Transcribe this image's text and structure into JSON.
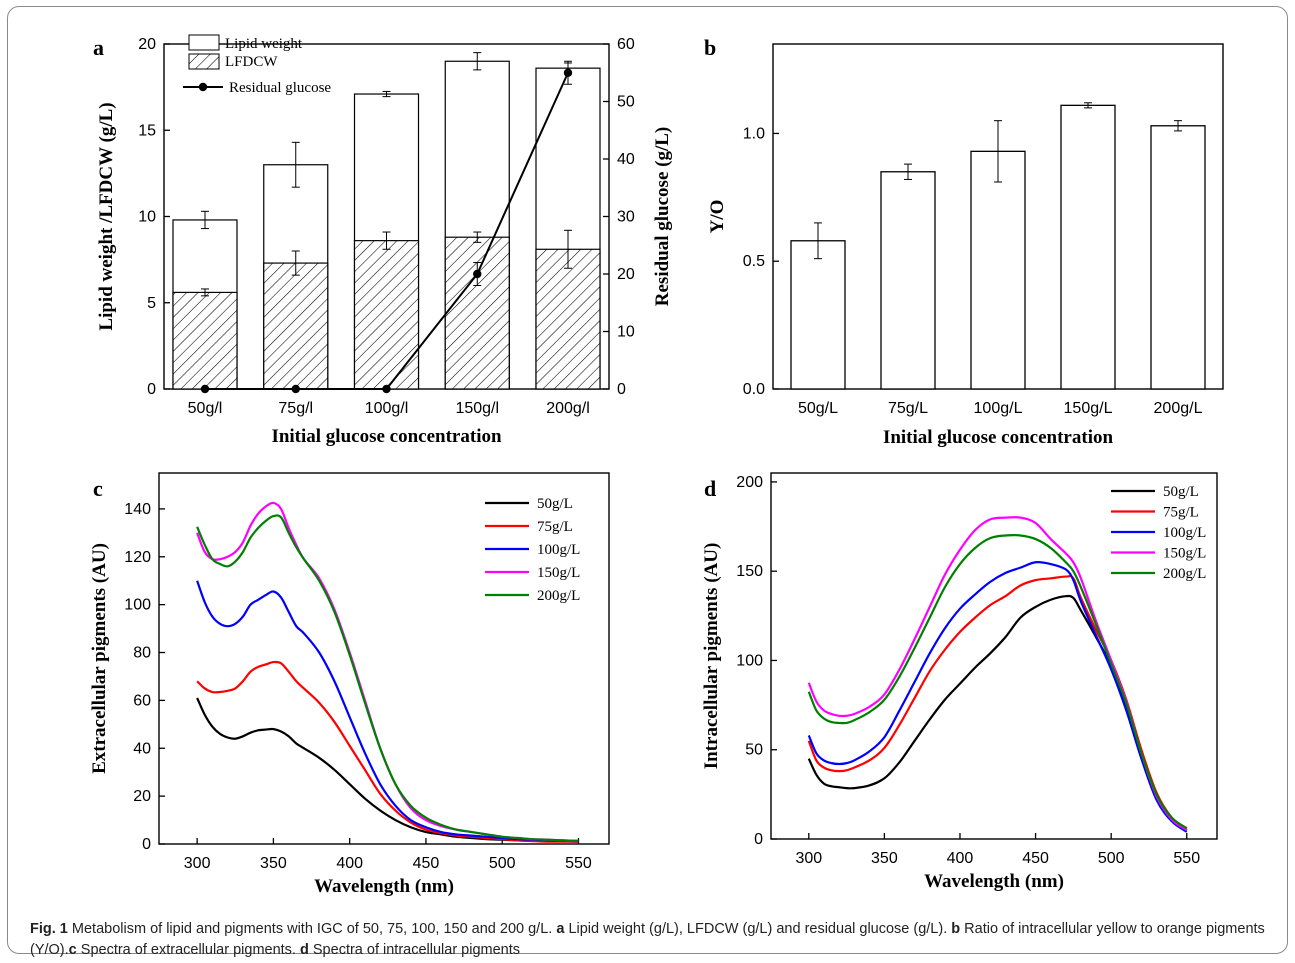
{
  "chart_data": [
    {
      "panel": "a",
      "type": "bar",
      "categories": [
        "50g/l",
        "75g/l",
        "100g/l",
        "150g/l",
        "200g/l"
      ],
      "xlabel": "Initial glucose concentration",
      "ylabel": "Lipid weight /LFDCW (g/L)",
      "y2label": "Residual glucose (g/L)",
      "ylim": [
        0,
        20
      ],
      "y2lim": [
        0,
        60
      ],
      "yticks": [
        0,
        5,
        10,
        15,
        20
      ],
      "y2ticks": [
        0,
        10,
        20,
        30,
        40,
        50,
        60
      ],
      "series": [
        {
          "name": "Lipid weight",
          "values": [
            9.8,
            13.0,
            17.1,
            19.0,
            18.6
          ],
          "errors": [
            0.5,
            1.3,
            0.15,
            0.5,
            0.3
          ]
        },
        {
          "name": "LFDCW",
          "values": [
            5.6,
            7.3,
            8.6,
            8.8,
            8.1
          ],
          "errors": [
            0.2,
            0.7,
            0.5,
            0.3,
            1.1
          ]
        },
        {
          "name": "Residual glucose",
          "values": [
            0,
            0,
            0,
            20,
            55
          ],
          "errors": [
            0,
            0,
            0,
            2,
            2
          ]
        }
      ],
      "legend_position": "top-left"
    },
    {
      "panel": "b",
      "type": "bar",
      "categories": [
        "50g/L",
        "75g/L",
        "100g/L",
        "150g/L",
        "200g/L"
      ],
      "xlabel": "Initial glucose concentration",
      "ylabel": "Y/O",
      "ylim": [
        0,
        1.35
      ],
      "yticks": [
        "0.0",
        "0.5",
        "1.0"
      ],
      "values": [
        0.58,
        0.85,
        0.93,
        1.11,
        1.03
      ],
      "errors": [
        0.07,
        0.03,
        0.12,
        0.01,
        0.02
      ]
    },
    {
      "panel": "c",
      "type": "line",
      "xlabel": "Wavelength (nm)",
      "ylabel": "Extracellular pigments (AU)",
      "xlim": [
        275,
        570
      ],
      "ylim": [
        0,
        155
      ],
      "xticks": [
        300,
        350,
        400,
        450,
        500,
        550
      ],
      "yticks": [
        0,
        20,
        40,
        60,
        80,
        100,
        120,
        140
      ],
      "legend_position": "top-right",
      "x": [
        300,
        305,
        310,
        315,
        320,
        325,
        330,
        335,
        340,
        345,
        350,
        355,
        360,
        365,
        370,
        380,
        390,
        400,
        410,
        420,
        430,
        440,
        450,
        460,
        470,
        480,
        490,
        500,
        510,
        520,
        530,
        540,
        550
      ],
      "series": [
        {
          "name": "50g/L",
          "color": "#000000",
          "values": [
            61,
            54,
            49,
            46,
            44.5,
            44,
            45,
            46.5,
            47.5,
            47.8,
            48,
            47,
            45,
            42,
            40,
            36,
            31,
            25,
            19,
            14,
            10,
            7,
            5,
            4,
            3,
            2.5,
            2,
            1.8,
            1.5,
            1.3,
            1.2,
            1.1,
            1
          ]
        },
        {
          "name": "75g/L",
          "color": "#ff0000",
          "values": [
            68,
            65,
            63.5,
            63.5,
            64,
            65,
            68,
            72,
            74,
            75,
            76,
            75.5,
            72,
            68,
            65,
            59,
            51,
            41,
            31,
            21,
            14,
            9,
            6,
            4.5,
            3.5,
            3,
            2.5,
            2,
            1.5,
            1.2,
            1,
            1,
            1
          ]
        },
        {
          "name": "100g/L",
          "color": "#0000ff",
          "values": [
            110,
            101,
            95,
            92,
            91,
            92,
            95,
            100,
            102,
            104,
            105.5,
            103,
            97,
            91,
            88,
            80,
            68,
            53,
            38,
            25,
            16,
            10,
            7,
            5,
            4,
            3.5,
            3,
            2.5,
            2,
            1.8,
            1.5,
            1.3,
            1.2
          ]
        },
        {
          "name": "150g/L",
          "color": "#ff00ff",
          "values": [
            130,
            122,
            119,
            119,
            120,
            122,
            126,
            133,
            138,
            141,
            142.5,
            140,
            132,
            125,
            119,
            111,
            98,
            80,
            60,
            40,
            25,
            15,
            10,
            7.5,
            6,
            5,
            4,
            3,
            2.5,
            2,
            1.8,
            1.5,
            1.3
          ]
        },
        {
          "name": "200g/L",
          "color": "#008000",
          "values": [
            132.5,
            125,
            119,
            117,
            116,
            118,
            122,
            128,
            132,
            135,
            137,
            136.5,
            130,
            124,
            119,
            110,
            97,
            79,
            59,
            40,
            25,
            16,
            11,
            8,
            6,
            5,
            4,
            3,
            2.5,
            2,
            1.8,
            1.5,
            1.3
          ]
        }
      ]
    },
    {
      "panel": "d",
      "type": "line",
      "xlabel": "Wavelength (nm)",
      "ylabel": "Intracellular pigments (AU)",
      "xlim": [
        275,
        570
      ],
      "ylim": [
        0,
        205
      ],
      "xticks": [
        300,
        350,
        400,
        450,
        500,
        550
      ],
      "yticks": [
        0,
        50,
        100,
        150,
        200
      ],
      "legend_position": "top-right",
      "x": [
        300,
        305,
        310,
        315,
        320,
        325,
        330,
        340,
        350,
        360,
        370,
        380,
        390,
        400,
        410,
        420,
        430,
        440,
        450,
        460,
        470,
        475,
        480,
        490,
        500,
        510,
        520,
        530,
        540,
        550
      ],
      "series": [
        {
          "name": "50g/L",
          "color": "#000000",
          "values": [
            45,
            36,
            31,
            29.5,
            29,
            28.5,
            28.5,
            30,
            34,
            43,
            55,
            67,
            78,
            87,
            96,
            104,
            113,
            124,
            130,
            134,
            136,
            135,
            128,
            113,
            97,
            75,
            47,
            25,
            12,
            6
          ]
        },
        {
          "name": "75g/L",
          "color": "#ff0000",
          "values": [
            55,
            44,
            40,
            38.5,
            38,
            38.5,
            40,
            44,
            51,
            64,
            79,
            94,
            106,
            116,
            124,
            131,
            136,
            142,
            145,
            146,
            147,
            146,
            135,
            117,
            100,
            78,
            50,
            26,
            12,
            5
          ]
        },
        {
          "name": "100g/L",
          "color": "#0000ff",
          "values": [
            58,
            48,
            44,
            42.5,
            42,
            42.5,
            44,
            49,
            57,
            72,
            88,
            104,
            118,
            129,
            137,
            144,
            149,
            152,
            155,
            154,
            151,
            145,
            133,
            114,
            95,
            72,
            45,
            22,
            10,
            4
          ]
        },
        {
          "name": "150g/L",
          "color": "#ff00ff",
          "values": [
            87.5,
            77,
            72,
            70,
            69,
            69,
            70,
            74,
            81,
            95,
            112,
            130,
            148,
            162,
            173,
            179,
            180,
            180,
            177,
            168,
            160,
            155,
            146,
            122,
            100,
            77,
            48,
            24,
            11,
            5
          ]
        },
        {
          "name": "200g/L",
          "color": "#008000",
          "values": [
            82.5,
            72,
            67.5,
            65.5,
            65,
            65,
            66.5,
            71,
            78,
            91,
            107,
            124,
            141,
            154,
            163,
            168.5,
            170,
            170,
            168,
            163,
            155,
            150,
            141,
            120,
            98,
            76,
            48,
            25,
            12,
            6
          ]
        }
      ]
    }
  ],
  "panel_labels": {
    "a": "a",
    "b": "b",
    "c": "c",
    "d": "d"
  },
  "colors": {
    "error_bar": "#000000",
    "axis": "#000000"
  },
  "caption": {
    "fig_label": "Fig. 1",
    "segments": [
      {
        "bold": false,
        "text": "  Metabolism of lipid and pigments with IGC of 50, 75, 100, 150 and 200 g/L. "
      },
      {
        "bold": true,
        "text": "a"
      },
      {
        "bold": false,
        "text": " Lipid weight (g/L), LFDCW (g/L) and residual glucose (g/L). "
      },
      {
        "bold": true,
        "text": "b"
      },
      {
        "bold": false,
        "text": " Ratio of intracellular yellow to orange pigments (Y/O)."
      },
      {
        "bold": true,
        "text": "c"
      },
      {
        "bold": false,
        "text": " Spectra of extracellular pigments. "
      },
      {
        "bold": true,
        "text": "d"
      },
      {
        "bold": false,
        "text": " Spectra of intracellular pigments"
      }
    ]
  }
}
